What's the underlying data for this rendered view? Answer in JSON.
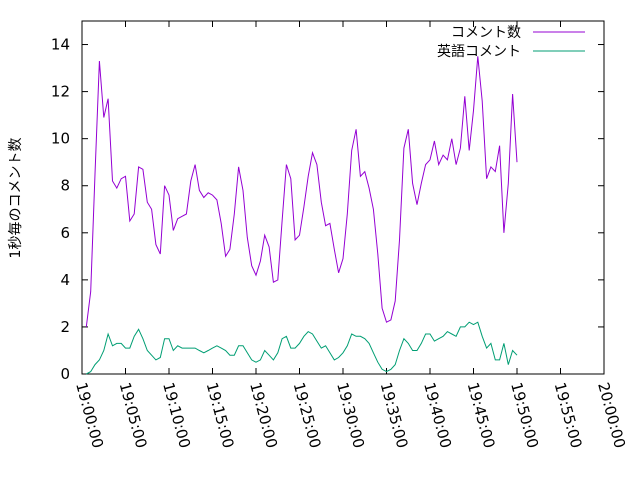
{
  "chart_data": {
    "type": "line",
    "title": "",
    "xlabel": "",
    "ylabel": "1秒毎のコメント数",
    "xlim": [
      "19:00:00",
      "20:00:00"
    ],
    "ylim": [
      0,
      15
    ],
    "x_ticks": [
      "19:00:00",
      "19:05:00",
      "19:10:00",
      "19:15:00",
      "19:20:00",
      "19:25:00",
      "19:30:00",
      "19:35:00",
      "19:40:00",
      "19:45:00",
      "19:50:00",
      "19:55:00",
      "20:00:00"
    ],
    "y_ticks": [
      "0",
      "2",
      "4",
      "6",
      "8",
      "10",
      "12",
      "14"
    ],
    "grid": false,
    "legend_position": "top-right",
    "series": [
      {
        "name": "コメント数",
        "color": "#9400d3",
        "points": [
          [
            "19:00:30",
            2.0
          ],
          [
            "19:01:00",
            3.5
          ],
          [
            "19:01:30",
            8.5
          ],
          [
            "19:02:00",
            13.3
          ],
          [
            "19:02:30",
            10.9
          ],
          [
            "19:03:00",
            11.7
          ],
          [
            "19:03:30",
            8.2
          ],
          [
            "19:04:00",
            7.9
          ],
          [
            "19:04:30",
            8.3
          ],
          [
            "19:05:00",
            8.4
          ],
          [
            "19:05:30",
            6.5
          ],
          [
            "19:06:00",
            6.8
          ],
          [
            "19:06:30",
            8.8
          ],
          [
            "19:07:00",
            8.7
          ],
          [
            "19:07:30",
            7.3
          ],
          [
            "19:08:00",
            7.0
          ],
          [
            "19:08:30",
            5.5
          ],
          [
            "19:09:00",
            5.1
          ],
          [
            "19:09:30",
            8.0
          ],
          [
            "19:10:00",
            7.6
          ],
          [
            "19:10:30",
            6.1
          ],
          [
            "19:11:00",
            6.6
          ],
          [
            "19:11:30",
            6.7
          ],
          [
            "19:12:00",
            6.8
          ],
          [
            "19:12:30",
            8.2
          ],
          [
            "19:13:00",
            8.9
          ],
          [
            "19:13:30",
            7.8
          ],
          [
            "19:14:00",
            7.5
          ],
          [
            "19:14:30",
            7.7
          ],
          [
            "19:15:00",
            7.6
          ],
          [
            "19:15:30",
            7.4
          ],
          [
            "19:16:00",
            6.4
          ],
          [
            "19:16:30",
            5.0
          ],
          [
            "19:17:00",
            5.3
          ],
          [
            "19:17:30",
            6.8
          ],
          [
            "19:18:00",
            8.8
          ],
          [
            "19:18:30",
            7.8
          ],
          [
            "19:19:00",
            5.8
          ],
          [
            "19:19:30",
            4.6
          ],
          [
            "19:20:00",
            4.2
          ],
          [
            "19:20:30",
            4.8
          ],
          [
            "19:21:00",
            5.9
          ],
          [
            "19:21:30",
            5.4
          ],
          [
            "19:22:00",
            3.9
          ],
          [
            "19:22:30",
            4.0
          ],
          [
            "19:23:00",
            6.5
          ],
          [
            "19:23:30",
            8.9
          ],
          [
            "19:24:00",
            8.3
          ],
          [
            "19:24:30",
            5.7
          ],
          [
            "19:25:00",
            5.9
          ],
          [
            "19:25:30",
            7.1
          ],
          [
            "19:26:00",
            8.4
          ],
          [
            "19:26:30",
            9.4
          ],
          [
            "19:27:00",
            8.9
          ],
          [
            "19:27:30",
            7.3
          ],
          [
            "19:28:00",
            6.3
          ],
          [
            "19:28:30",
            6.4
          ],
          [
            "19:29:00",
            5.3
          ],
          [
            "19:29:30",
            4.3
          ],
          [
            "19:30:00",
            4.9
          ],
          [
            "19:30:30",
            6.8
          ],
          [
            "19:31:00",
            9.5
          ],
          [
            "19:31:30",
            10.4
          ],
          [
            "19:32:00",
            8.4
          ],
          [
            "19:32:30",
            8.6
          ],
          [
            "19:33:00",
            7.9
          ],
          [
            "19:33:30",
            7.0
          ],
          [
            "19:34:00",
            5.1
          ],
          [
            "19:34:30",
            2.8
          ],
          [
            "19:35:00",
            2.2
          ],
          [
            "19:35:30",
            2.3
          ],
          [
            "19:36:00",
            3.1
          ],
          [
            "19:36:30",
            5.7
          ],
          [
            "19:37:00",
            9.6
          ],
          [
            "19:37:30",
            10.4
          ],
          [
            "19:38:00",
            8.1
          ],
          [
            "19:38:30",
            7.2
          ],
          [
            "19:39:00",
            8.1
          ],
          [
            "19:39:30",
            8.9
          ],
          [
            "19:40:00",
            9.1
          ],
          [
            "19:40:30",
            9.9
          ],
          [
            "19:41:00",
            8.9
          ],
          [
            "19:41:30",
            9.3
          ],
          [
            "19:42:00",
            9.1
          ],
          [
            "19:42:30",
            10.0
          ],
          [
            "19:43:00",
            8.9
          ],
          [
            "19:43:30",
            9.6
          ],
          [
            "19:44:00",
            11.8
          ],
          [
            "19:44:30",
            9.5
          ],
          [
            "19:45:00",
            11.2
          ],
          [
            "19:45:30",
            13.5
          ],
          [
            "19:46:00",
            11.6
          ],
          [
            "19:46:30",
            8.3
          ],
          [
            "19:47:00",
            8.8
          ],
          [
            "19:47:30",
            8.6
          ],
          [
            "19:48:00",
            9.7
          ],
          [
            "19:48:30",
            6.0
          ],
          [
            "19:49:00",
            8.1
          ],
          [
            "19:49:30",
            11.9
          ],
          [
            "19:50:00",
            9.0
          ]
        ]
      },
      {
        "name": "英語コメント",
        "color": "#009e73",
        "points": [
          [
            "19:00:30",
            0.0
          ],
          [
            "19:01:00",
            0.1
          ],
          [
            "19:01:30",
            0.4
          ],
          [
            "19:02:00",
            0.6
          ],
          [
            "19:02:30",
            1.0
          ],
          [
            "19:03:00",
            1.7
          ],
          [
            "19:03:30",
            1.2
          ],
          [
            "19:04:00",
            1.3
          ],
          [
            "19:04:30",
            1.3
          ],
          [
            "19:05:00",
            1.1
          ],
          [
            "19:05:30",
            1.1
          ],
          [
            "19:06:00",
            1.6
          ],
          [
            "19:06:30",
            1.9
          ],
          [
            "19:07:00",
            1.5
          ],
          [
            "19:07:30",
            1.0
          ],
          [
            "19:08:00",
            0.8
          ],
          [
            "19:08:30",
            0.6
          ],
          [
            "19:09:00",
            0.7
          ],
          [
            "19:09:30",
            1.5
          ],
          [
            "19:10:00",
            1.5
          ],
          [
            "19:10:30",
            1.0
          ],
          [
            "19:11:00",
            1.2
          ],
          [
            "19:11:30",
            1.1
          ],
          [
            "19:12:00",
            1.1
          ],
          [
            "19:12:30",
            1.1
          ],
          [
            "19:13:00",
            1.1
          ],
          [
            "19:13:30",
            1.0
          ],
          [
            "19:14:00",
            0.9
          ],
          [
            "19:14:30",
            1.0
          ],
          [
            "19:15:00",
            1.1
          ],
          [
            "19:15:30",
            1.2
          ],
          [
            "19:16:00",
            1.1
          ],
          [
            "19:16:30",
            1.0
          ],
          [
            "19:17:00",
            0.8
          ],
          [
            "19:17:30",
            0.8
          ],
          [
            "19:18:00",
            1.2
          ],
          [
            "19:18:30",
            1.2
          ],
          [
            "19:19:00",
            0.9
          ],
          [
            "19:19:30",
            0.6
          ],
          [
            "19:20:00",
            0.5
          ],
          [
            "19:20:30",
            0.6
          ],
          [
            "19:21:00",
            1.0
          ],
          [
            "19:21:30",
            0.8
          ],
          [
            "19:22:00",
            0.6
          ],
          [
            "19:22:30",
            0.9
          ],
          [
            "19:23:00",
            1.5
          ],
          [
            "19:23:30",
            1.6
          ],
          [
            "19:24:00",
            1.1
          ],
          [
            "19:24:30",
            1.1
          ],
          [
            "19:25:00",
            1.3
          ],
          [
            "19:25:30",
            1.6
          ],
          [
            "19:26:00",
            1.8
          ],
          [
            "19:26:30",
            1.7
          ],
          [
            "19:27:00",
            1.4
          ],
          [
            "19:27:30",
            1.1
          ],
          [
            "19:28:00",
            1.2
          ],
          [
            "19:28:30",
            0.9
          ],
          [
            "19:29:00",
            0.6
          ],
          [
            "19:29:30",
            0.7
          ],
          [
            "19:30:00",
            0.9
          ],
          [
            "19:30:30",
            1.2
          ],
          [
            "19:31:00",
            1.7
          ],
          [
            "19:31:30",
            1.6
          ],
          [
            "19:32:00",
            1.6
          ],
          [
            "19:32:30",
            1.5
          ],
          [
            "19:33:00",
            1.3
          ],
          [
            "19:33:30",
            0.9
          ],
          [
            "19:34:00",
            0.5
          ],
          [
            "19:34:30",
            0.2
          ],
          [
            "19:35:00",
            0.1
          ],
          [
            "19:35:30",
            0.2
          ],
          [
            "19:36:00",
            0.4
          ],
          [
            "19:36:30",
            1.0
          ],
          [
            "19:37:00",
            1.5
          ],
          [
            "19:37:30",
            1.3
          ],
          [
            "19:38:00",
            1.0
          ],
          [
            "19:38:30",
            1.0
          ],
          [
            "19:39:00",
            1.3
          ],
          [
            "19:39:30",
            1.7
          ],
          [
            "19:40:00",
            1.7
          ],
          [
            "19:40:30",
            1.4
          ],
          [
            "19:41:00",
            1.5
          ],
          [
            "19:41:30",
            1.6
          ],
          [
            "19:42:00",
            1.8
          ],
          [
            "19:42:30",
            1.7
          ],
          [
            "19:43:00",
            1.6
          ],
          [
            "19:43:30",
            2.0
          ],
          [
            "19:44:00",
            2.0
          ],
          [
            "19:44:30",
            2.2
          ],
          [
            "19:45:00",
            2.1
          ],
          [
            "19:45:30",
            2.2
          ],
          [
            "19:46:00",
            1.6
          ],
          [
            "19:46:30",
            1.1
          ],
          [
            "19:47:00",
            1.3
          ],
          [
            "19:47:30",
            0.6
          ],
          [
            "19:48:00",
            0.6
          ],
          [
            "19:48:30",
            1.3
          ],
          [
            "19:49:00",
            0.4
          ],
          [
            "19:49:30",
            1.0
          ],
          [
            "19:50:00",
            0.8
          ]
        ]
      }
    ]
  }
}
